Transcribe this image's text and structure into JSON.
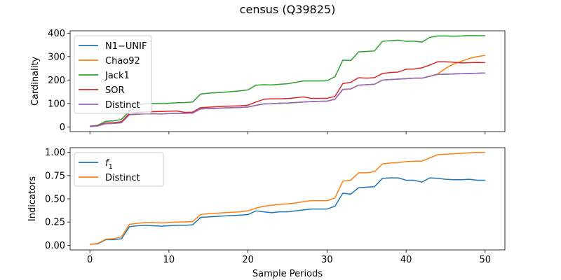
{
  "figure": {
    "title": "census (Q39825)"
  },
  "chart_data": [
    {
      "type": "line",
      "title": "",
      "xlabel": "",
      "ylabel": "Cardinality",
      "xlim": [
        -2.5,
        52.5
      ],
      "ylim": [
        -20,
        410
      ],
      "xticks": [
        0,
        10,
        20,
        30,
        40,
        50
      ],
      "xtick_labels_visible": false,
      "yticks": [
        0,
        100,
        200,
        300,
        400
      ],
      "legend_position": "top-left",
      "grid": false,
      "series": [
        {
          "name": "N1−UNIF",
          "color": "#1f77b4",
          "x": [
            0,
            1,
            2,
            3,
            4,
            5,
            6,
            7,
            8,
            9,
            10,
            11,
            12,
            13,
            14,
            15,
            16,
            17,
            18,
            19,
            20,
            21,
            22,
            23,
            24,
            25,
            26,
            27,
            28,
            29,
            30,
            31,
            32,
            33,
            34,
            35,
            36,
            37,
            38,
            39,
            40,
            41,
            42,
            43,
            44,
            45,
            46,
            47,
            48,
            49,
            50
          ],
          "y": [
            2,
            4,
            14,
            15,
            18,
            52,
            54,
            56,
            56,
            55,
            57,
            58,
            58,
            59,
            77,
            78,
            79,
            81,
            82,
            83,
            85,
            92,
            98,
            99,
            101,
            102,
            104,
            106,
            108,
            109,
            110,
            118,
            160,
            162,
            178,
            180,
            182,
            200,
            202,
            204,
            206,
            208,
            208,
            216,
            224,
            225,
            226,
            227,
            228,
            229,
            230
          ]
        },
        {
          "name": "Chao92",
          "color": "#ff7f0e",
          "x": [
            0,
            1,
            2,
            3,
            4,
            5,
            6,
            7,
            8,
            9,
            10,
            11,
            12,
            13,
            14,
            15,
            16,
            17,
            18,
            19,
            20,
            21,
            22,
            23,
            24,
            25,
            26,
            27,
            28,
            29,
            30,
            31,
            32,
            33,
            34,
            35,
            36,
            37,
            38,
            39,
            40,
            41,
            42,
            43,
            44,
            45,
            46,
            47,
            48,
            49,
            50
          ],
          "y": [
            2,
            4,
            14,
            15,
            18,
            52,
            54,
            56,
            56,
            55,
            57,
            58,
            58,
            59,
            77,
            78,
            79,
            81,
            82,
            83,
            85,
            92,
            98,
            99,
            101,
            102,
            104,
            106,
            108,
            109,
            110,
            118,
            160,
            162,
            178,
            180,
            182,
            200,
            202,
            204,
            206,
            208,
            208,
            216,
            226,
            250,
            268,
            280,
            292,
            300,
            305
          ]
        },
        {
          "name": "Jack1",
          "color": "#2ca02c",
          "x": [
            0,
            1,
            2,
            3,
            4,
            5,
            6,
            7,
            8,
            9,
            10,
            11,
            12,
            13,
            14,
            15,
            16,
            17,
            18,
            19,
            20,
            21,
            22,
            23,
            24,
            25,
            26,
            27,
            28,
            29,
            30,
            31,
            32,
            33,
            34,
            35,
            36,
            37,
            38,
            39,
            40,
            41,
            42,
            43,
            44,
            45,
            46,
            47,
            48,
            49,
            50
          ],
          "y": [
            3,
            7,
            24,
            26,
            32,
            68,
            92,
            100,
            100,
            99,
            101,
            103,
            104,
            106,
            140,
            144,
            146,
            148,
            151,
            154,
            158,
            178,
            180,
            179,
            182,
            184,
            190,
            196,
            196,
            196,
            197,
            214,
            285,
            283,
            320,
            322,
            324,
            365,
            368,
            370,
            365,
            366,
            362,
            382,
            388,
            388,
            387,
            388,
            390,
            389,
            389
          ]
        },
        {
          "name": "SOR",
          "color": "#d62728",
          "x": [
            0,
            1,
            2,
            3,
            4,
            5,
            6,
            7,
            8,
            9,
            10,
            11,
            12,
            13,
            14,
            15,
            16,
            17,
            18,
            19,
            20,
            21,
            22,
            23,
            24,
            25,
            26,
            27,
            28,
            29,
            30,
            31,
            32,
            33,
            34,
            35,
            36,
            37,
            38,
            39,
            40,
            41,
            42,
            43,
            44,
            45,
            46,
            47,
            48,
            49,
            50
          ],
          "y": [
            3,
            5,
            17,
            18,
            22,
            58,
            62,
            64,
            65,
            66,
            67,
            68,
            62,
            63,
            82,
            84,
            86,
            88,
            89,
            90,
            93,
            106,
            118,
            120,
            120,
            121,
            124,
            128,
            122,
            122,
            122,
            130,
            185,
            190,
            210,
            208,
            210,
            228,
            232,
            234,
            246,
            247,
            252,
            264,
            278,
            278,
            276,
            273,
            274,
            275,
            274
          ]
        },
        {
          "name": "Distinct",
          "color": "#9467bd",
          "x": [
            0,
            1,
            2,
            3,
            4,
            5,
            6,
            7,
            8,
            9,
            10,
            11,
            12,
            13,
            14,
            15,
            16,
            17,
            18,
            19,
            20,
            21,
            22,
            23,
            24,
            25,
            26,
            27,
            28,
            29,
            30,
            31,
            32,
            33,
            34,
            35,
            36,
            37,
            38,
            39,
            40,
            41,
            42,
            43,
            44,
            45,
            46,
            47,
            48,
            49,
            50
          ],
          "y": [
            2,
            4,
            14,
            15,
            18,
            52,
            54,
            56,
            56,
            55,
            57,
            58,
            58,
            59,
            77,
            78,
            79,
            81,
            82,
            83,
            85,
            92,
            98,
            99,
            101,
            102,
            104,
            106,
            108,
            109,
            110,
            118,
            160,
            162,
            178,
            180,
            182,
            200,
            202,
            204,
            206,
            208,
            208,
            216,
            224,
            225,
            226,
            227,
            228,
            229,
            230
          ]
        }
      ]
    },
    {
      "type": "line",
      "title": "",
      "xlabel": "Sample Periods",
      "ylabel": "Indicators",
      "xlim": [
        -2.5,
        52.5
      ],
      "ylim": [
        -0.05,
        1.05
      ],
      "xticks": [
        0,
        10,
        20,
        30,
        40,
        50
      ],
      "xtick_labels_visible": true,
      "yticks": [
        0.0,
        0.25,
        0.5,
        0.75,
        1.0
      ],
      "ytick_labels": [
        "0.00",
        "0.25",
        "0.50",
        "0.75",
        "1.00"
      ],
      "legend_position": "top-left",
      "grid": false,
      "series": [
        {
          "name": "f1",
          "color": "#1f77b4",
          "x": [
            0,
            1,
            2,
            3,
            4,
            5,
            6,
            7,
            8,
            9,
            10,
            11,
            12,
            13,
            14,
            15,
            16,
            17,
            18,
            19,
            20,
            21,
            22,
            23,
            24,
            25,
            26,
            27,
            28,
            29,
            30,
            31,
            32,
            33,
            34,
            35,
            36,
            37,
            38,
            39,
            40,
            41,
            42,
            43,
            44,
            45,
            46,
            47,
            48,
            49,
            50
          ],
          "y": [
            0.01,
            0.015,
            0.06,
            0.06,
            0.07,
            0.2,
            0.21,
            0.215,
            0.21,
            0.205,
            0.21,
            0.215,
            0.215,
            0.22,
            0.3,
            0.305,
            0.31,
            0.315,
            0.32,
            0.325,
            0.33,
            0.37,
            0.36,
            0.35,
            0.36,
            0.36,
            0.37,
            0.38,
            0.39,
            0.39,
            0.39,
            0.42,
            0.56,
            0.55,
            0.62,
            0.625,
            0.63,
            0.72,
            0.725,
            0.725,
            0.7,
            0.7,
            0.68,
            0.725,
            0.72,
            0.71,
            0.705,
            0.705,
            0.71,
            0.7,
            0.7
          ]
        },
        {
          "name": "Distinct",
          "color": "#ff7f0e",
          "x": [
            0,
            1,
            2,
            3,
            4,
            5,
            6,
            7,
            8,
            9,
            10,
            11,
            12,
            13,
            14,
            15,
            16,
            17,
            18,
            19,
            20,
            21,
            22,
            23,
            24,
            25,
            26,
            27,
            28,
            29,
            30,
            31,
            32,
            33,
            34,
            35,
            36,
            37,
            38,
            39,
            40,
            41,
            42,
            43,
            44,
            45,
            46,
            47,
            48,
            49,
            50
          ],
          "y": [
            0.01,
            0.02,
            0.065,
            0.07,
            0.09,
            0.225,
            0.235,
            0.245,
            0.245,
            0.24,
            0.245,
            0.25,
            0.25,
            0.255,
            0.33,
            0.34,
            0.345,
            0.35,
            0.355,
            0.36,
            0.37,
            0.4,
            0.42,
            0.43,
            0.44,
            0.445,
            0.455,
            0.47,
            0.48,
            0.48,
            0.48,
            0.51,
            0.69,
            0.7,
            0.78,
            0.78,
            0.79,
            0.875,
            0.885,
            0.89,
            0.9,
            0.905,
            0.905,
            0.94,
            0.975,
            0.98,
            0.985,
            0.99,
            0.995,
            1.0,
            1.0
          ]
        }
      ]
    }
  ]
}
